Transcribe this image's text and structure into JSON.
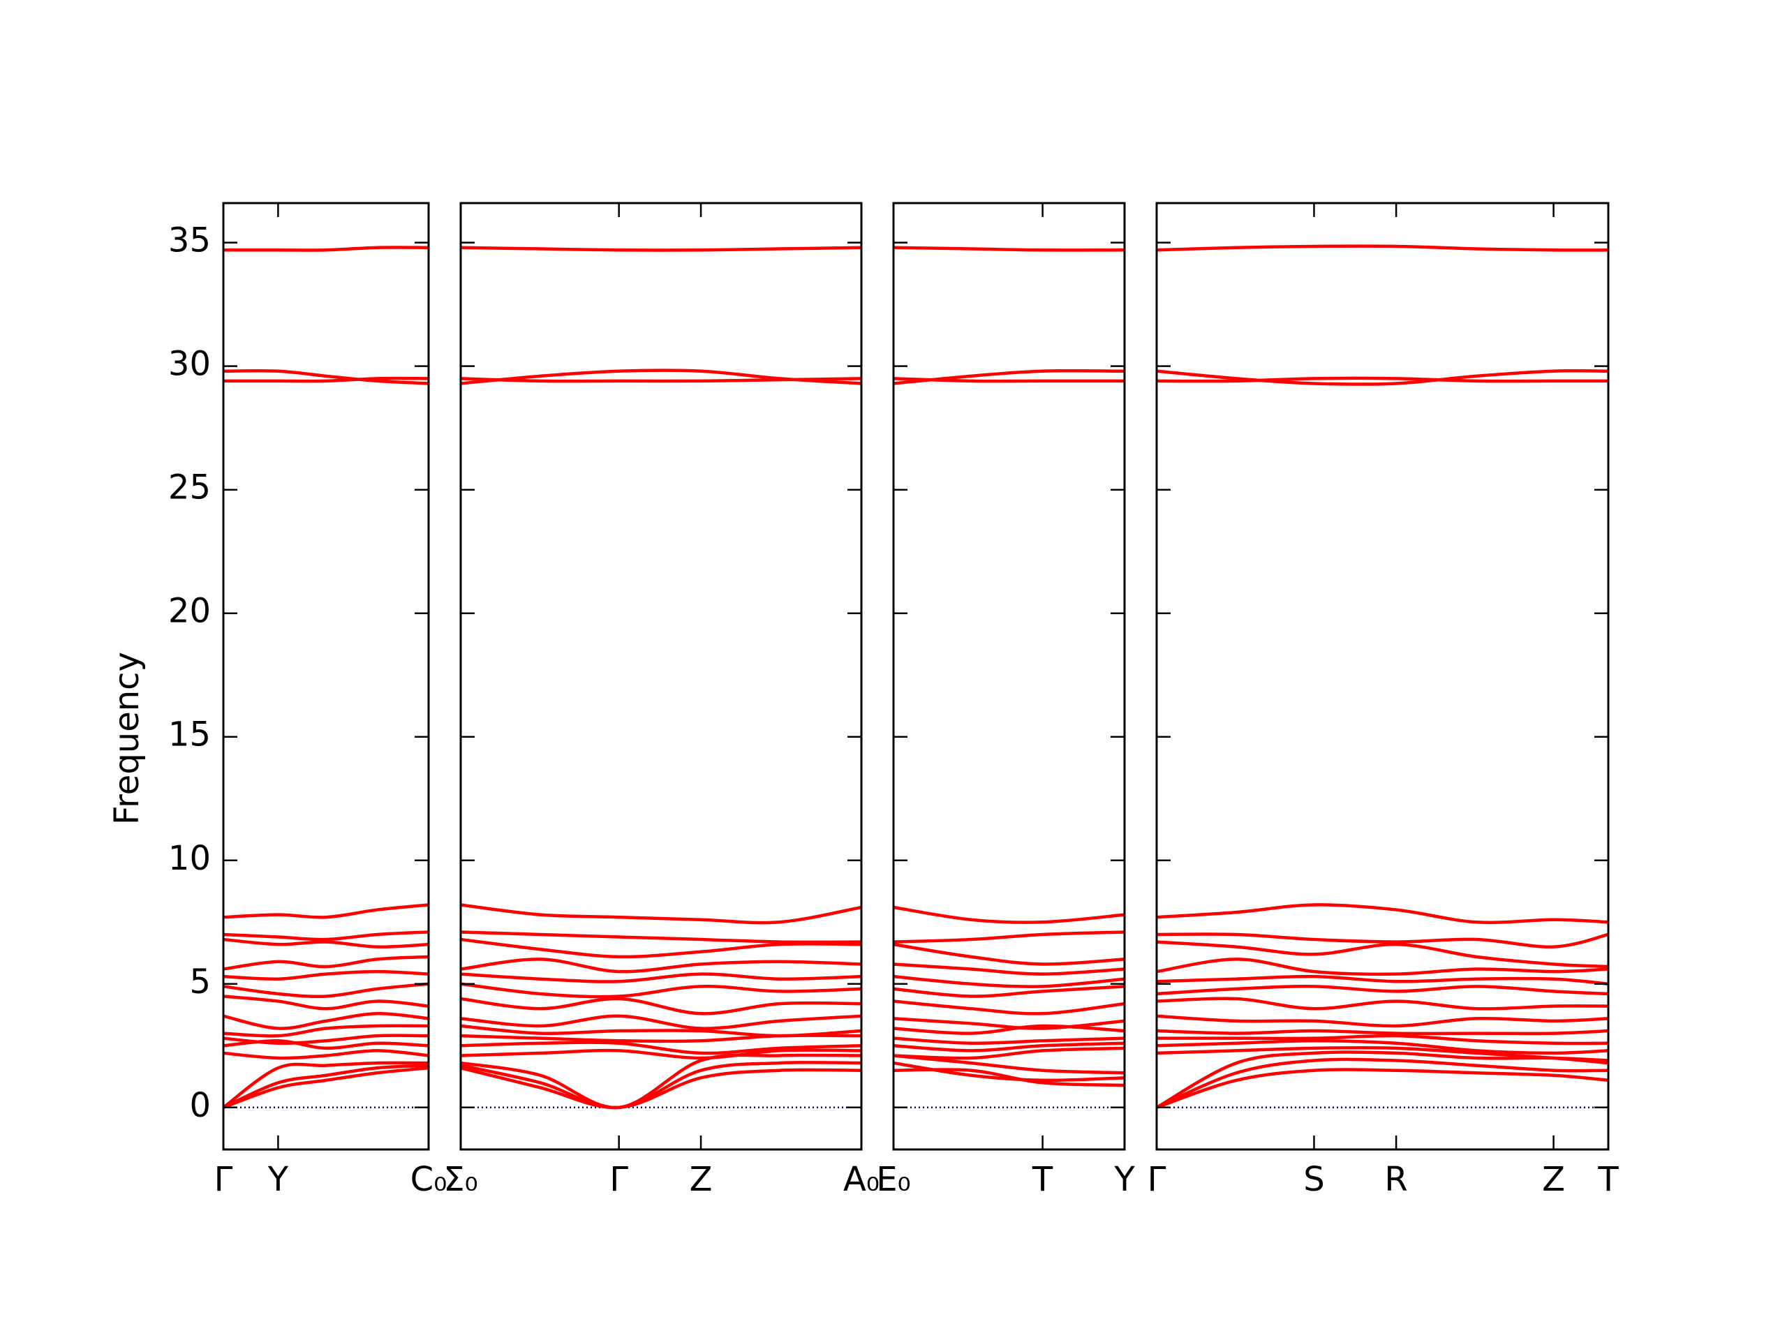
{
  "chart_data": {
    "type": "line",
    "ylabel": "Frequency",
    "color": "#ff0000",
    "ylim": [
      -1.7,
      36.6
    ],
    "yticks": [
      0,
      5,
      10,
      15,
      20,
      25,
      30,
      35
    ],
    "zero_line": {
      "y": 0,
      "color": "#0000aa"
    },
    "panels": [
      {
        "xlim": [
          0,
          1.8
        ],
        "xticks": [
          {
            "value": 0,
            "label": "Γ"
          },
          {
            "value": 0.48,
            "label": "Y"
          },
          {
            "value": 1.8,
            "label": "C₀"
          }
        ],
        "x": [
          0,
          0.48,
          0.9,
          1.35,
          1.8
        ],
        "series": [
          {
            "values": [
              34.7,
              34.7,
              34.7,
              34.8,
              34.8
            ]
          },
          {
            "values": [
              29.8,
              29.8,
              29.6,
              29.4,
              29.3
            ]
          },
          {
            "values": [
              29.4,
              29.4,
              29.4,
              29.5,
              29.5
            ]
          },
          {
            "values": [
              7.7,
              7.8,
              7.7,
              8.0,
              8.2
            ]
          },
          {
            "values": [
              7.0,
              6.9,
              6.8,
              7.0,
              7.1
            ]
          },
          {
            "values": [
              6.8,
              6.6,
              6.7,
              6.5,
              6.6
            ]
          },
          {
            "values": [
              5.6,
              5.9,
              5.7,
              6.0,
              6.1
            ]
          },
          {
            "values": [
              5.3,
              5.2,
              5.4,
              5.5,
              5.4
            ]
          },
          {
            "values": [
              4.9,
              4.6,
              4.5,
              4.8,
              5.0
            ]
          },
          {
            "values": [
              4.5,
              4.3,
              4.0,
              4.3,
              4.1
            ]
          },
          {
            "values": [
              3.7,
              3.2,
              3.5,
              3.8,
              3.6
            ]
          },
          {
            "values": [
              3.0,
              2.9,
              3.2,
              3.3,
              3.3
            ]
          },
          {
            "values": [
              2.8,
              2.6,
              2.7,
              2.9,
              2.9
            ]
          },
          {
            "values": [
              2.5,
              2.7,
              2.4,
              2.6,
              2.5
            ]
          },
          {
            "values": [
              2.2,
              2.0,
              2.1,
              2.3,
              2.1
            ]
          },
          {
            "values": [
              0,
              1.6,
              1.7,
              1.8,
              1.8
            ]
          },
          {
            "values": [
              0,
              1.0,
              1.3,
              1.6,
              1.7
            ]
          },
          {
            "values": [
              0,
              0.8,
              1.1,
              1.4,
              1.6
            ]
          }
        ]
      },
      {
        "xlim": [
          1.8,
          5.32
        ],
        "xticks": [
          {
            "value": 1.8,
            "label": "Σ₀"
          },
          {
            "value": 3.19,
            "label": "Γ"
          },
          {
            "value": 3.91,
            "label": "Z"
          },
          {
            "value": 5.32,
            "label": "A₀"
          }
        ],
        "x": [
          1.8,
          2.5,
          3.19,
          3.91,
          4.6,
          5.32
        ],
        "series": [
          {
            "values": [
              34.8,
              34.75,
              34.7,
              34.7,
              34.75,
              34.8
            ]
          },
          {
            "values": [
              29.3,
              29.6,
              29.8,
              29.8,
              29.5,
              29.3
            ]
          },
          {
            "values": [
              29.5,
              29.4,
              29.4,
              29.4,
              29.45,
              29.5
            ]
          },
          {
            "values": [
              8.2,
              7.8,
              7.7,
              7.6,
              7.5,
              8.1
            ]
          },
          {
            "values": [
              7.1,
              7.0,
              6.9,
              6.8,
              6.7,
              6.7
            ]
          },
          {
            "values": [
              6.8,
              6.4,
              6.1,
              6.3,
              6.6,
              6.6
            ]
          },
          {
            "values": [
              5.6,
              6.0,
              5.5,
              5.8,
              5.9,
              5.8
            ]
          },
          {
            "values": [
              5.4,
              5.2,
              5.1,
              5.4,
              5.2,
              5.3
            ]
          },
          {
            "values": [
              5.0,
              4.6,
              4.5,
              4.9,
              4.7,
              4.8
            ]
          },
          {
            "values": [
              4.4,
              4.0,
              4.4,
              3.8,
              4.2,
              4.2
            ]
          },
          {
            "values": [
              3.6,
              3.3,
              3.7,
              3.2,
              3.5,
              3.7
            ]
          },
          {
            "values": [
              3.3,
              3.0,
              3.1,
              3.1,
              2.9,
              3.1
            ]
          },
          {
            "values": [
              2.9,
              2.8,
              2.7,
              2.7,
              2.9,
              2.9
            ]
          },
          {
            "values": [
              2.5,
              2.6,
              2.6,
              2.2,
              2.4,
              2.5
            ]
          },
          {
            "values": [
              2.1,
              2.2,
              2.3,
              2.0,
              2.3,
              2.3
            ]
          },
          {
            "values": [
              1.8,
              1.3,
              0,
              1.9,
              2.1,
              2.1
            ]
          },
          {
            "values": [
              1.7,
              1.0,
              0,
              1.5,
              1.8,
              1.8
            ]
          },
          {
            "values": [
              1.6,
              0.8,
              0,
              1.2,
              1.5,
              1.5
            ]
          }
        ]
      },
      {
        "xlim": [
          5.32,
          7.35
        ],
        "xticks": [
          {
            "value": 5.32,
            "label": "E₀"
          },
          {
            "value": 6.63,
            "label": "T"
          },
          {
            "value": 7.35,
            "label": "Y"
          }
        ],
        "x": [
          5.32,
          6.0,
          6.63,
          7.35
        ],
        "series": [
          {
            "values": [
              34.8,
              34.75,
              34.7,
              34.7
            ]
          },
          {
            "values": [
              29.3,
              29.6,
              29.8,
              29.8
            ]
          },
          {
            "values": [
              29.5,
              29.4,
              29.4,
              29.4
            ]
          },
          {
            "values": [
              8.1,
              7.6,
              7.5,
              7.8
            ]
          },
          {
            "values": [
              6.7,
              6.8,
              7.0,
              7.1
            ]
          },
          {
            "values": [
              6.6,
              6.1,
              5.8,
              6.0
            ]
          },
          {
            "values": [
              5.8,
              5.6,
              5.4,
              5.6
            ]
          },
          {
            "values": [
              5.3,
              5.0,
              4.9,
              5.2
            ]
          },
          {
            "values": [
              4.8,
              4.5,
              4.7,
              4.9
            ]
          },
          {
            "values": [
              4.3,
              4.0,
              3.8,
              4.2
            ]
          },
          {
            "values": [
              3.6,
              3.4,
              3.2,
              3.5
            ]
          },
          {
            "values": [
              3.2,
              3.0,
              3.3,
              3.1
            ]
          },
          {
            "values": [
              2.8,
              2.6,
              2.7,
              2.8
            ]
          },
          {
            "values": [
              2.5,
              2.3,
              2.5,
              2.6
            ]
          },
          {
            "values": [
              2.1,
              2.0,
              2.3,
              2.4
            ]
          },
          {
            "values": [
              2.1,
              1.8,
              1.5,
              1.4
            ]
          },
          {
            "values": [
              1.8,
              1.3,
              1.1,
              1.2
            ]
          },
          {
            "values": [
              1.5,
              1.5,
              1.0,
              0.9
            ]
          }
        ]
      },
      {
        "xlim": [
          7.35,
          11.31
        ],
        "xticks": [
          {
            "value": 7.35,
            "label": "Γ"
          },
          {
            "value": 8.73,
            "label": "S"
          },
          {
            "value": 9.45,
            "label": "R"
          },
          {
            "value": 10.83,
            "label": "Z"
          },
          {
            "value": 11.31,
            "label": "T"
          }
        ],
        "x": [
          7.35,
          8.05,
          8.73,
          9.45,
          10.15,
          10.83,
          11.31
        ],
        "series": [
          {
            "values": [
              34.7,
              34.8,
              34.85,
              34.85,
              34.75,
              34.7,
              34.7
            ]
          },
          {
            "values": [
              29.8,
              29.5,
              29.3,
              29.3,
              29.6,
              29.8,
              29.8
            ]
          },
          {
            "values": [
              29.4,
              29.4,
              29.5,
              29.5,
              29.4,
              29.4,
              29.4
            ]
          },
          {
            "values": [
              7.7,
              7.9,
              8.2,
              8.0,
              7.5,
              7.6,
              7.5
            ]
          },
          {
            "values": [
              7.0,
              7.0,
              6.8,
              6.7,
              6.8,
              6.5,
              7.0
            ]
          },
          {
            "values": [
              6.7,
              6.5,
              6.2,
              6.6,
              6.1,
              5.8,
              5.7
            ]
          },
          {
            "values": [
              5.5,
              6.0,
              5.5,
              5.4,
              5.6,
              5.5,
              5.6
            ]
          },
          {
            "values": [
              5.1,
              5.2,
              5.3,
              5.1,
              5.2,
              5.2,
              5.0
            ]
          },
          {
            "values": [
              4.6,
              4.8,
              4.9,
              4.7,
              4.9,
              4.7,
              4.6
            ]
          },
          {
            "values": [
              4.3,
              4.4,
              4.0,
              4.3,
              4.0,
              4.1,
              4.1
            ]
          },
          {
            "values": [
              3.7,
              3.5,
              3.5,
              3.3,
              3.6,
              3.5,
              3.6
            ]
          },
          {
            "values": [
              3.1,
              3.0,
              3.1,
              3.0,
              3.0,
              3.0,
              3.1
            ]
          },
          {
            "values": [
              2.8,
              2.8,
              2.8,
              2.9,
              2.7,
              2.6,
              2.6
            ]
          },
          {
            "values": [
              2.5,
              2.6,
              2.7,
              2.6,
              2.3,
              2.2,
              2.3
            ]
          },
          {
            "values": [
              2.2,
              2.3,
              2.4,
              2.4,
              2.2,
              2.0,
              1.8
            ]
          },
          {
            "values": [
              0,
              1.8,
              2.2,
              2.2,
              2.0,
              2.0,
              1.9
            ]
          },
          {
            "values": [
              0,
              1.4,
              1.9,
              1.9,
              1.7,
              1.5,
              1.5
            ]
          },
          {
            "values": [
              0,
              1.1,
              1.5,
              1.5,
              1.4,
              1.3,
              1.1
            ]
          }
        ]
      }
    ]
  }
}
